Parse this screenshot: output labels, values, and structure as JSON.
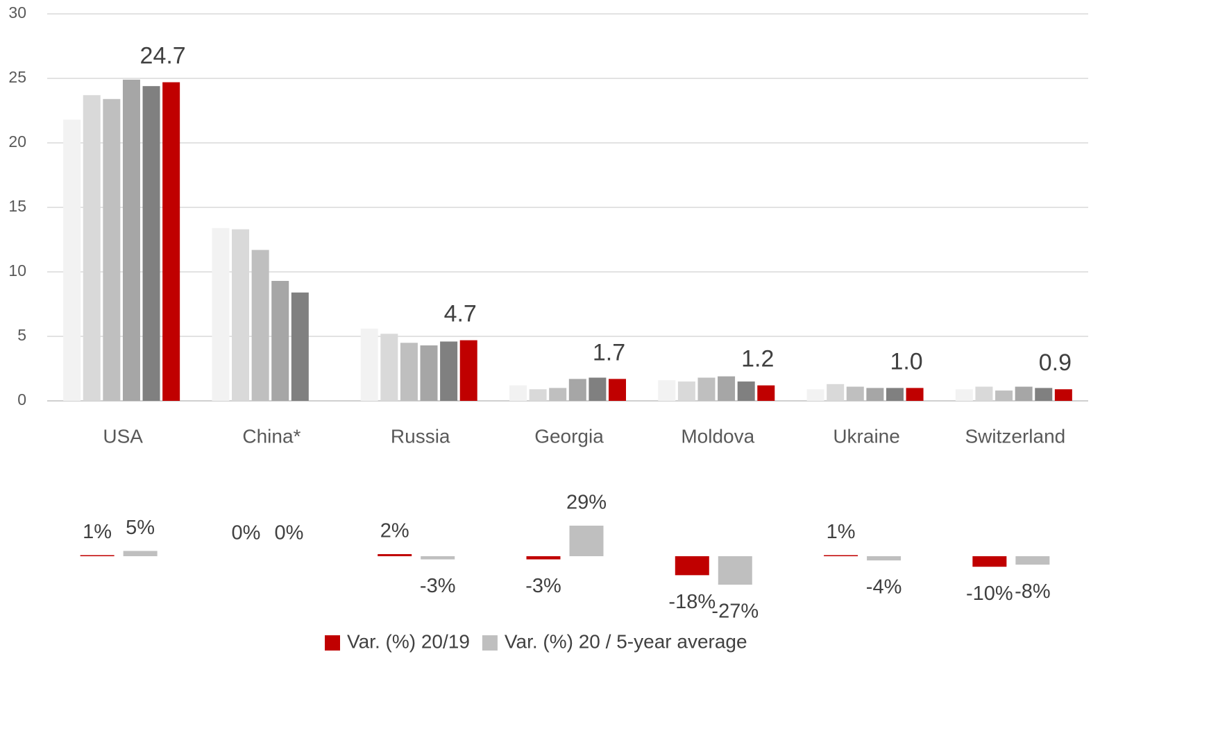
{
  "chart_data": [
    {
      "type": "bar",
      "categories": [
        "USA",
        "China*",
        "Russia",
        "Georgia",
        "Moldova",
        "Ukraine",
        "Switzerland"
      ],
      "series": [
        {
          "color": "#f2f2f2",
          "values": [
            21.8,
            13.4,
            5.6,
            1.2,
            1.6,
            0.9,
            0.9
          ]
        },
        {
          "color": "#d9d9d9",
          "values": [
            23.7,
            13.3,
            5.2,
            0.9,
            1.5,
            1.3,
            1.1
          ]
        },
        {
          "color": "#bfbfbf",
          "values": [
            23.4,
            11.7,
            4.5,
            1.0,
            1.8,
            1.1,
            0.8
          ]
        },
        {
          "color": "#a6a6a6",
          "values": [
            24.9,
            9.3,
            4.3,
            1.7,
            1.9,
            1.0,
            1.1
          ]
        },
        {
          "color": "#808080",
          "values": [
            24.4,
            8.4,
            4.6,
            1.8,
            1.5,
            1.0,
            1.0
          ]
        },
        {
          "color": "#c00000",
          "values": [
            24.7,
            null,
            4.7,
            1.7,
            1.2,
            1.0,
            0.9
          ],
          "value_labels": [
            "24.7",
            null,
            "4.7",
            "1.7",
            "1.2",
            "1.0",
            "0.9"
          ]
        }
      ],
      "ylim": [
        0,
        30
      ],
      "yticks": [
        0,
        5,
        10,
        15,
        20,
        25,
        30
      ],
      "grid": true
    },
    {
      "type": "bar",
      "series": [
        {
          "name": "Var. (%) 20/19",
          "color": "#c00000",
          "values": [
            1,
            0,
            2,
            -3,
            -18,
            1,
            -10
          ],
          "value_labels": [
            "1%",
            "0%",
            "2%",
            "-3%",
            "-18%",
            "1%",
            "-10%"
          ]
        },
        {
          "name": "Var. (%) 20 / 5-year average",
          "color": "#bfbfbf",
          "values": [
            5,
            0,
            -3,
            29,
            -27,
            -4,
            -8
          ],
          "value_labels": [
            "5%",
            "0%",
            "-3%",
            "29%",
            "-27%",
            "-4%",
            "-8%"
          ]
        }
      ],
      "legend": "bottom"
    }
  ]
}
